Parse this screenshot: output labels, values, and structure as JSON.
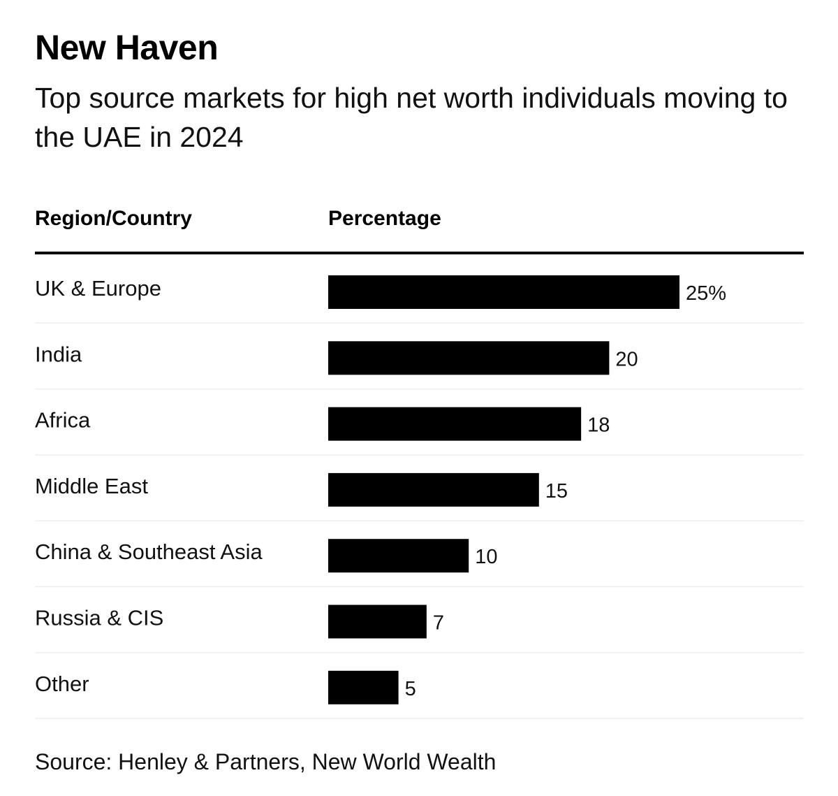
{
  "title": "New Haven",
  "subtitle": "Top source markets for high net worth individuals moving to the UAE in 2024",
  "headers": {
    "region": "Region/Country",
    "percentage": "Percentage"
  },
  "source": "Source: Henley & Partners, New World Wealth",
  "colors": {
    "bar": "#000000",
    "row_divider": "#eeeeee",
    "header_rule": "#000000"
  },
  "chart_data": {
    "type": "bar",
    "orientation": "horizontal",
    "title": "New Haven",
    "subtitle": "Top source markets for high net worth individuals moving to the UAE in 2024",
    "xlabel": "Percentage",
    "ylabel": "Region/Country",
    "categories": [
      "UK & Europe",
      "India",
      "Africa",
      "Middle East",
      "China & Southeast Asia",
      "Russia & CIS",
      "Other"
    ],
    "values": [
      25,
      20,
      18,
      15,
      10,
      7,
      5
    ],
    "value_labels": [
      "25%",
      "20",
      "18",
      "15",
      "10",
      "7",
      "5"
    ],
    "unit": "%",
    "xlim": [
      0,
      25
    ],
    "grid": false,
    "legend": "none"
  }
}
